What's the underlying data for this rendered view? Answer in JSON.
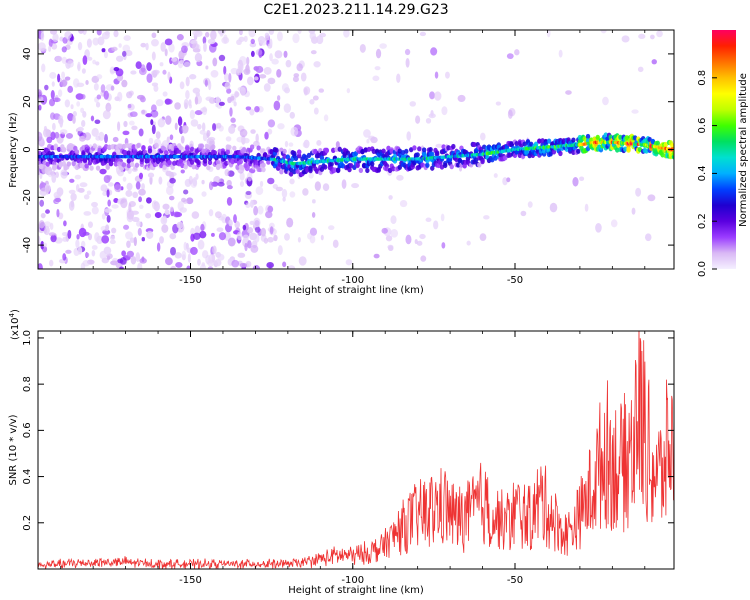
{
  "figure": {
    "title": "C2E1.2023.211.14.29.G23"
  },
  "chart_data": [
    {
      "type": "heatmap",
      "title": "C2E1.2023.211.14.29.G23",
      "xlabel": "Height of straight line (km)",
      "ylabel": "Frequency (Hz)",
      "xlim": [
        -197,
        -1
      ],
      "ylim": [
        -50,
        50
      ],
      "x_ticks": [
        -150,
        -100,
        -50
      ],
      "x_tick_labels": [
        "-150",
        "-100",
        "-50"
      ],
      "y_ticks": [
        -40,
        -20,
        0,
        20,
        40
      ],
      "y_tick_labels": [
        "-40",
        "-20",
        "0",
        "20",
        "40"
      ],
      "ridge": {
        "description": "dominant spectral line frequency (Hz) vs height (km)",
        "x": [
          -197,
          -175,
          -150,
          -135,
          -125,
          -118,
          -110,
          -100,
          -90,
          -80,
          -70,
          -60,
          -50,
          -40,
          -30,
          -25,
          -20,
          -10,
          -2
        ],
        "y": [
          -3,
          -3,
          -3,
          -3,
          -4,
          -6,
          -5,
          -4,
          -4,
          -4,
          -3,
          -2,
          0,
          1,
          2,
          3,
          3,
          2,
          0
        ]
      },
      "colorbar": {
        "label": "Normalized spectral amplitude",
        "range": [
          0,
          1
        ],
        "ticks": [
          0.0,
          0.2,
          0.4,
          0.6,
          0.8
        ],
        "tick_labels": [
          "0.0",
          "0.2",
          "0.4",
          "0.6",
          "0.8"
        ],
        "colormap": [
          "#f5f0ff",
          "#d9b8f5",
          "#9a3cff",
          "#5a00e0",
          "#1f00d0",
          "#0040ff",
          "#00b0ff",
          "#00e0d0",
          "#00e060",
          "#40ff00",
          "#c0ff00",
          "#ffff00",
          "#ffc000",
          "#ff7000",
          "#ff2000",
          "#ff0060"
        ]
      },
      "grid": false
    },
    {
      "type": "line",
      "xlabel": "Height of straight line (km)",
      "ylabel": "SNR (10 * v/v)",
      "y_multiplier_label": "(x10",
      "y_multiplier_exp": "4",
      "y_multiplier_close": ")",
      "xlim": [
        -197,
        -1
      ],
      "ylim": [
        0,
        1.03
      ],
      "x_ticks": [
        -150,
        -100,
        -50
      ],
      "x_tick_labels": [
        "-150",
        "-100",
        "-50"
      ],
      "y_ticks": [
        0.2,
        0.4,
        0.6,
        0.8,
        1.0
      ],
      "y_tick_labels": [
        "0.2",
        "0.4",
        "0.6",
        "0.8",
        "1.0"
      ],
      "color": "#ee3333",
      "series": [
        {
          "x": [
            -197,
            -190,
            -180,
            -170,
            -160,
            -150,
            -140,
            -130,
            -125,
            -120,
            -115,
            -110,
            -105,
            -100,
            -95,
            -92,
            -88,
            -85,
            -80,
            -76,
            -72,
            -68,
            -64,
            -60,
            -56,
            -52,
            -50,
            -45,
            -42,
            -38,
            -35,
            -32,
            -28,
            -25,
            -22,
            -18,
            -15,
            -12,
            -10,
            -8,
            -5,
            -3,
            -1
          ],
          "y": [
            0.02,
            0.03,
            0.04,
            0.04,
            0.03,
            0.03,
            0.03,
            0.03,
            0.03,
            0.03,
            0.04,
            0.06,
            0.08,
            0.08,
            0.1,
            0.12,
            0.18,
            0.25,
            0.32,
            0.35,
            0.38,
            0.3,
            0.33,
            0.4,
            0.3,
            0.28,
            0.35,
            0.3,
            0.42,
            0.3,
            0.2,
            0.25,
            0.4,
            0.55,
            0.7,
            0.6,
            0.65,
            0.95,
            0.85,
            0.6,
            0.55,
            0.7,
            0.75
          ]
        }
      ],
      "grid": false
    }
  ]
}
